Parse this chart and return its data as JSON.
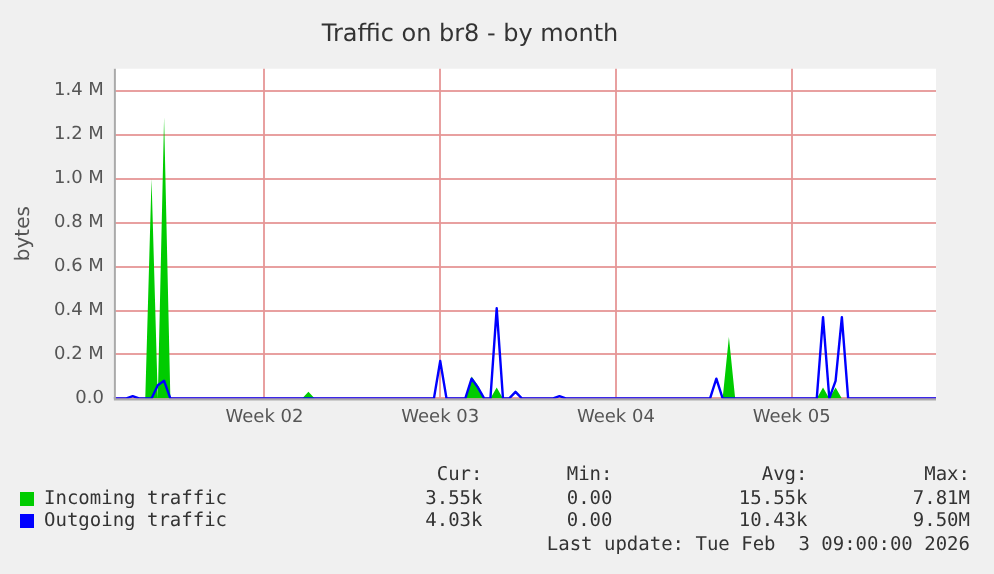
{
  "chart_data": {
    "type": "area",
    "title": "Traffic on br8 - by month",
    "ylabel": "bytes",
    "categories": [
      null,
      null,
      null,
      null,
      null,
      null,
      null,
      null,
      null,
      null,
      null,
      null,
      null,
      null,
      null,
      null,
      null,
      null,
      null,
      null,
      null,
      null,
      null,
      null,
      "Week 02",
      null,
      null,
      null,
      null,
      null,
      null,
      null,
      null,
      null,
      null,
      null,
      null,
      null,
      null,
      null,
      null,
      null,
      null,
      null,
      null,
      null,
      null,
      null,
      null,
      null,
      null,
      null,
      "Week 03",
      null,
      null,
      null,
      null,
      null,
      null,
      null,
      null,
      null,
      null,
      null,
      null,
      null,
      null,
      null,
      null,
      null,
      null,
      null,
      null,
      null,
      null,
      null,
      null,
      null,
      null,
      null,
      "Week 04",
      null,
      null,
      null,
      null,
      null,
      null,
      null,
      null,
      null,
      null,
      null,
      null,
      null,
      null,
      null,
      null,
      null,
      null,
      null,
      null,
      null,
      null,
      null,
      null,
      null,
      null,
      null,
      "Week 05",
      null,
      null,
      null,
      null,
      null,
      null,
      null,
      null,
      null,
      null,
      null,
      null,
      null,
      null,
      null,
      null,
      null,
      null,
      null,
      null,
      null,
      null,
      null
    ],
    "ylim": [
      0,
      1500000
    ],
    "yticks": [
      {
        "value": 0,
        "label": "0.0"
      },
      {
        "value": 200000,
        "label": "0.2 M"
      },
      {
        "value": 400000,
        "label": "0.4 M"
      },
      {
        "value": 600000,
        "label": "0.6 M"
      },
      {
        "value": 800000,
        "label": "0.8 M"
      },
      {
        "value": 1000000,
        "label": "1.0 M"
      },
      {
        "value": 1200000,
        "label": "1.2 M"
      },
      {
        "value": 1400000,
        "label": "1.4 M"
      }
    ],
    "grid": true,
    "legend": "bottom",
    "marker": "none",
    "series": [
      {
        "name": "Incoming traffic",
        "color": "#00cc00",
        "values": [
          0,
          0,
          0,
          0,
          0,
          0,
          1000000,
          0,
          1280000,
          0,
          0,
          0,
          0,
          0,
          0,
          0,
          0,
          0,
          0,
          0,
          0,
          0,
          0,
          0,
          0,
          0,
          0,
          0,
          0,
          0,
          0,
          30000,
          0,
          0,
          0,
          0,
          0,
          0,
          0,
          0,
          0,
          0,
          0,
          0,
          0,
          0,
          0,
          0,
          0,
          0,
          0,
          0,
          0,
          0,
          0,
          0,
          0,
          100000,
          60000,
          0,
          0,
          50000,
          0,
          0,
          0,
          0,
          0,
          0,
          0,
          0,
          0,
          0,
          0,
          0,
          0,
          0,
          0,
          0,
          0,
          0,
          0,
          0,
          0,
          0,
          0,
          0,
          0,
          0,
          0,
          0,
          0,
          0,
          0,
          0,
          0,
          0,
          0,
          0,
          280000,
          0,
          0,
          0,
          0,
          0,
          0,
          0,
          0,
          0,
          0,
          0,
          0,
          0,
          0,
          50000,
          0,
          50000,
          0,
          0,
          0,
          0,
          0,
          0,
          0,
          0,
          0,
          0,
          0,
          0,
          0,
          0,
          0,
          0
        ]
      },
      {
        "name": "Outgoing traffic",
        "type": "line",
        "color": "#0000ff",
        "values": [
          0,
          0,
          0,
          10000,
          0,
          0,
          0,
          60000,
          80000,
          0,
          0,
          0,
          0,
          0,
          0,
          0,
          0,
          0,
          0,
          0,
          0,
          0,
          0,
          0,
          0,
          0,
          0,
          0,
          0,
          0,
          0,
          0,
          0,
          0,
          0,
          0,
          0,
          0,
          0,
          0,
          0,
          0,
          0,
          0,
          0,
          0,
          0,
          0,
          0,
          0,
          0,
          0,
          170000,
          0,
          0,
          0,
          0,
          90000,
          50000,
          0,
          0,
          410000,
          0,
          0,
          30000,
          0,
          0,
          0,
          0,
          0,
          0,
          10000,
          0,
          0,
          0,
          0,
          0,
          0,
          0,
          0,
          0,
          0,
          0,
          0,
          0,
          0,
          0,
          0,
          0,
          0,
          0,
          0,
          0,
          0,
          0,
          0,
          90000,
          0,
          0,
          0,
          0,
          0,
          0,
          0,
          0,
          0,
          0,
          0,
          0,
          0,
          0,
          0,
          0,
          370000,
          0,
          80000,
          370000,
          0,
          0,
          0,
          0,
          0,
          0,
          0,
          0,
          0,
          0,
          0,
          0,
          0,
          0,
          0
        ]
      }
    ],
    "annotations": [
      "Cur:",
      "Min:",
      "Avg:",
      "Max:",
      "3.55k",
      "0.00",
      "15.55k",
      "7.81M",
      "4.03k",
      "0.00",
      "10.43k",
      "9.50M",
      "Last update: Tue Feb  3 09:00:00 2026"
    ]
  }
}
